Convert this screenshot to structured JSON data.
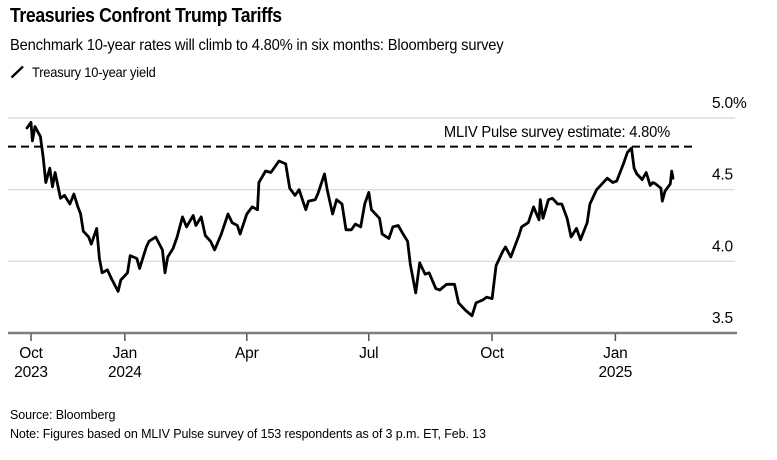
{
  "header": {
    "title": "Treasuries Confront Trump Tariffs",
    "subtitle": "Benchmark 10-year rates will climb to 4.80% in six months: Bloomberg survey"
  },
  "legend": {
    "icon": "diagonal-line-swatch",
    "label": "Treasury 10-year yield"
  },
  "annotation": {
    "label": "MLIV Pulse survey estimate: 4.80%"
  },
  "footer": {
    "source": "Source: Bloomberg",
    "note": "Note: Figures based on MLIV Pulse survey of 153 respondents as of 3 p.m. ET, Feb. 13"
  },
  "chart_data": {
    "type": "line",
    "title": "Treasuries Confront Trump Tariffs",
    "ylabel": "Treasury 10-year yield (%)",
    "grid": "horizontal",
    "legend_position": "top-left",
    "colors": {
      "series": "#000000",
      "grid": "#dcdcdc",
      "axis": "#7d7d7d",
      "tick": "#555555",
      "reference": "#000000",
      "background": "#ffffff"
    },
    "y_axis": {
      "range": [
        3.5,
        5.0
      ],
      "ticks": [
        {
          "value": 5.0,
          "label": "5.0%"
        },
        {
          "value": 4.5,
          "label": "4.5"
        },
        {
          "value": 4.0,
          "label": "4.0"
        },
        {
          "value": 3.5,
          "label": "3.5"
        }
      ]
    },
    "x_axis": {
      "range": [
        "2023-10-20",
        "2025-02-13"
      ],
      "ticks": [
        {
          "date": "2023-10-23",
          "month": "Oct",
          "year": "2023"
        },
        {
          "date": "2024-01-01",
          "month": "Jan",
          "year": "2024"
        },
        {
          "date": "2024-04-01",
          "month": "Apr",
          "year": ""
        },
        {
          "date": "2024-07-01",
          "month": "Jul",
          "year": ""
        },
        {
          "date": "2024-10-01",
          "month": "Oct",
          "year": ""
        },
        {
          "date": "2025-01-01",
          "month": "Jan",
          "year": "2025"
        }
      ]
    },
    "reference_line": {
      "value": 4.8,
      "style": "dashed",
      "label": "MLIV Pulse survey estimate: 4.80%"
    },
    "series": [
      {
        "name": "Treasury 10-year yield",
        "unit": "%",
        "points": [
          [
            "2023-10-20",
            4.93
          ],
          [
            "2023-10-23",
            4.97
          ],
          [
            "2023-10-24",
            4.84
          ],
          [
            "2023-10-26",
            4.94
          ],
          [
            "2023-10-30",
            4.87
          ],
          [
            "2023-11-01",
            4.73
          ],
          [
            "2023-11-03",
            4.55
          ],
          [
            "2023-11-06",
            4.65
          ],
          [
            "2023-11-08",
            4.52
          ],
          [
            "2023-11-10",
            4.62
          ],
          [
            "2023-11-14",
            4.44
          ],
          [
            "2023-11-17",
            4.46
          ],
          [
            "2023-11-21",
            4.4
          ],
          [
            "2023-11-24",
            4.47
          ],
          [
            "2023-11-27",
            4.38
          ],
          [
            "2023-11-29",
            4.33
          ],
          [
            "2023-12-01",
            4.21
          ],
          [
            "2023-12-05",
            4.17
          ],
          [
            "2023-12-07",
            4.12
          ],
          [
            "2023-12-11",
            4.23
          ],
          [
            "2023-12-13",
            4.02
          ],
          [
            "2023-12-15",
            3.92
          ],
          [
            "2023-12-19",
            3.94
          ],
          [
            "2023-12-22",
            3.88
          ],
          [
            "2023-12-27",
            3.79
          ],
          [
            "2023-12-29",
            3.87
          ],
          [
            "2024-01-03",
            3.92
          ],
          [
            "2024-01-05",
            4.04
          ],
          [
            "2024-01-10",
            4.02
          ],
          [
            "2024-01-12",
            3.95
          ],
          [
            "2024-01-17",
            4.1
          ],
          [
            "2024-01-19",
            4.14
          ],
          [
            "2024-01-24",
            4.17
          ],
          [
            "2024-01-29",
            4.08
          ],
          [
            "2024-01-31",
            3.92
          ],
          [
            "2024-02-02",
            4.03
          ],
          [
            "2024-02-06",
            4.09
          ],
          [
            "2024-02-09",
            4.17
          ],
          [
            "2024-02-13",
            4.31
          ],
          [
            "2024-02-16",
            4.24
          ],
          [
            "2024-02-21",
            4.32
          ],
          [
            "2024-02-23",
            4.25
          ],
          [
            "2024-02-27",
            4.31
          ],
          [
            "2024-03-01",
            4.18
          ],
          [
            "2024-03-05",
            4.14
          ],
          [
            "2024-03-08",
            4.08
          ],
          [
            "2024-03-13",
            4.19
          ],
          [
            "2024-03-18",
            4.33
          ],
          [
            "2024-03-21",
            4.27
          ],
          [
            "2024-03-25",
            4.25
          ],
          [
            "2024-03-27",
            4.19
          ],
          [
            "2024-04-01",
            4.33
          ],
          [
            "2024-04-05",
            4.38
          ],
          [
            "2024-04-09",
            4.36
          ],
          [
            "2024-04-10",
            4.55
          ],
          [
            "2024-04-15",
            4.63
          ],
          [
            "2024-04-19",
            4.62
          ],
          [
            "2024-04-25",
            4.7
          ],
          [
            "2024-04-30",
            4.68
          ],
          [
            "2024-05-03",
            4.51
          ],
          [
            "2024-05-07",
            4.46
          ],
          [
            "2024-05-10",
            4.5
          ],
          [
            "2024-05-15",
            4.36
          ],
          [
            "2024-05-17",
            4.42
          ],
          [
            "2024-05-22",
            4.43
          ],
          [
            "2024-05-24",
            4.47
          ],
          [
            "2024-05-29",
            4.61
          ],
          [
            "2024-05-31",
            4.5
          ],
          [
            "2024-06-04",
            4.33
          ],
          [
            "2024-06-07",
            4.43
          ],
          [
            "2024-06-11",
            4.4
          ],
          [
            "2024-06-14",
            4.22
          ],
          [
            "2024-06-18",
            4.22
          ],
          [
            "2024-06-21",
            4.26
          ],
          [
            "2024-06-25",
            4.24
          ],
          [
            "2024-06-28",
            4.4
          ],
          [
            "2024-07-01",
            4.48
          ],
          [
            "2024-07-03",
            4.36
          ],
          [
            "2024-07-09",
            4.3
          ],
          [
            "2024-07-11",
            4.19
          ],
          [
            "2024-07-16",
            4.16
          ],
          [
            "2024-07-19",
            4.24
          ],
          [
            "2024-07-23",
            4.25
          ],
          [
            "2024-07-26",
            4.2
          ],
          [
            "2024-07-30",
            4.14
          ],
          [
            "2024-08-01",
            3.98
          ],
          [
            "2024-08-05",
            3.78
          ],
          [
            "2024-08-08",
            3.99
          ],
          [
            "2024-08-12",
            3.91
          ],
          [
            "2024-08-15",
            3.92
          ],
          [
            "2024-08-20",
            3.81
          ],
          [
            "2024-08-23",
            3.8
          ],
          [
            "2024-08-28",
            3.84
          ],
          [
            "2024-09-03",
            3.84
          ],
          [
            "2024-09-06",
            3.71
          ],
          [
            "2024-09-11",
            3.66
          ],
          [
            "2024-09-16",
            3.62
          ],
          [
            "2024-09-19",
            3.71
          ],
          [
            "2024-09-24",
            3.73
          ],
          [
            "2024-09-27",
            3.75
          ],
          [
            "2024-10-01",
            3.74
          ],
          [
            "2024-10-04",
            3.97
          ],
          [
            "2024-10-09",
            4.07
          ],
          [
            "2024-10-11",
            4.1
          ],
          [
            "2024-10-15",
            4.03
          ],
          [
            "2024-10-21",
            4.18
          ],
          [
            "2024-10-23",
            4.24
          ],
          [
            "2024-10-28",
            4.27
          ],
          [
            "2024-11-01",
            4.38
          ],
          [
            "2024-11-05",
            4.29
          ],
          [
            "2024-11-06",
            4.43
          ],
          [
            "2024-11-08",
            4.3
          ],
          [
            "2024-11-12",
            4.43
          ],
          [
            "2024-11-15",
            4.44
          ],
          [
            "2024-11-19",
            4.4
          ],
          [
            "2024-11-22",
            4.4
          ],
          [
            "2024-11-26",
            4.3
          ],
          [
            "2024-11-29",
            4.17
          ],
          [
            "2024-12-03",
            4.23
          ],
          [
            "2024-12-06",
            4.15
          ],
          [
            "2024-12-11",
            4.27
          ],
          [
            "2024-12-13",
            4.4
          ],
          [
            "2024-12-18",
            4.5
          ],
          [
            "2024-12-20",
            4.52
          ],
          [
            "2024-12-26",
            4.58
          ],
          [
            "2024-12-30",
            4.55
          ],
          [
            "2025-01-02",
            4.56
          ],
          [
            "2025-01-07",
            4.68
          ],
          [
            "2025-01-10",
            4.76
          ],
          [
            "2025-01-13",
            4.79
          ],
          [
            "2025-01-15",
            4.65
          ],
          [
            "2025-01-17",
            4.61
          ],
          [
            "2025-01-21",
            4.57
          ],
          [
            "2025-01-24",
            4.62
          ],
          [
            "2025-01-27",
            4.53
          ],
          [
            "2025-01-29",
            4.55
          ],
          [
            "2025-01-31",
            4.54
          ],
          [
            "2025-02-04",
            4.51
          ],
          [
            "2025-02-05",
            4.42
          ],
          [
            "2025-02-07",
            4.49
          ],
          [
            "2025-02-11",
            4.54
          ],
          [
            "2025-02-12",
            4.63
          ],
          [
            "2025-02-13",
            4.58
          ]
        ]
      }
    ]
  }
}
